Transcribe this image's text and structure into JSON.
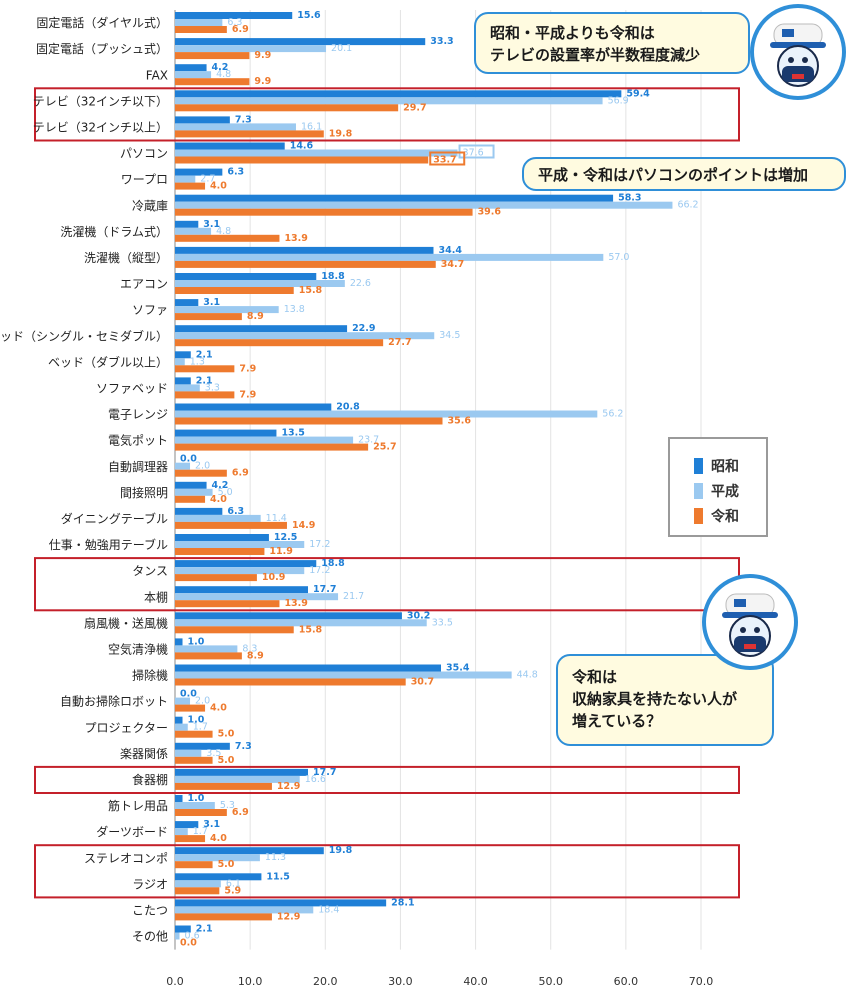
{
  "chart_data": {
    "type": "bar",
    "orientation": "horizontal",
    "categories": [
      "固定電話（ダイヤル式）",
      "固定電話（プッシュ式）",
      "FAX",
      "テレビ（32インチ以下）",
      "テレビ（32インチ以上）",
      "パソコン",
      "ワープロ",
      "冷蔵庫",
      "洗濯機（ドラム式）",
      "洗濯機（縦型）",
      "エアコン",
      "ソファ",
      "ベッド（シングル・セミダブル）",
      "ベッド（ダブル以上）",
      "ソファベッド",
      "電子レンジ",
      "電気ポット",
      "自動調理器",
      "間接照明",
      "ダイニングテーブル",
      "仕事・勉強用テーブル",
      "タンス",
      "本棚",
      "扇風機・送風機",
      "空気清浄機",
      "掃除機",
      "自動お掃除ロボット",
      "プロジェクター",
      "楽器関係",
      "食器棚",
      "筋トレ用品",
      "ダーツボード",
      "ステレオコンポ",
      "ラジオ",
      "こたつ",
      "その他"
    ],
    "series": [
      {
        "name": "昭和",
        "color": "#1f7fd6",
        "values": [
          15.6,
          33.3,
          4.2,
          59.4,
          7.3,
          14.6,
          6.3,
          58.3,
          3.1,
          34.4,
          18.8,
          3.1,
          22.9,
          2.1,
          2.1,
          20.8,
          13.5,
          0.0,
          4.2,
          6.3,
          12.5,
          18.8,
          17.7,
          30.2,
          1.0,
          35.4,
          0.0,
          1.0,
          7.3,
          17.7,
          1.0,
          3.1,
          19.8,
          11.5,
          28.1,
          2.1
        ]
      },
      {
        "name": "平成",
        "color": "#9bc9f0",
        "values": [
          6.3,
          20.1,
          4.8,
          56.9,
          16.1,
          37.6,
          2.7,
          66.2,
          4.8,
          57.0,
          22.6,
          13.8,
          34.5,
          1.3,
          3.3,
          56.2,
          23.7,
          2.0,
          5.0,
          11.4,
          17.2,
          17.2,
          21.7,
          33.5,
          8.3,
          44.8,
          2.0,
          1.7,
          3.5,
          16.6,
          5.3,
          1.7,
          11.3,
          6.1,
          18.4,
          0.6
        ]
      },
      {
        "name": "令和",
        "color": "#ee7a2e",
        "values": [
          6.9,
          9.9,
          9.9,
          29.7,
          19.8,
          33.7,
          4.0,
          39.6,
          13.9,
          34.7,
          15.8,
          8.9,
          27.7,
          7.9,
          7.9,
          35.6,
          25.7,
          6.9,
          4.0,
          14.9,
          11.9,
          10.9,
          13.9,
          15.8,
          8.9,
          30.7,
          4.0,
          5.0,
          5.0,
          12.9,
          6.9,
          4.0,
          5.0,
          5.9,
          12.9,
          0.0
        ]
      }
    ],
    "xlim": [
      0,
      70
    ],
    "xticks": [
      "0.0",
      "10.0",
      "20.0",
      "30.0",
      "40.0",
      "50.0",
      "60.0",
      "70.0"
    ],
    "grid": true,
    "legend_position": "right",
    "highlighted_categories": [
      "テレビ（32インチ以下）",
      "テレビ（32インチ以上）",
      "タンス",
      "本棚",
      "食器棚",
      "ステレオコンポ",
      "ラジオ"
    ],
    "highlighted_values": [
      "37.6",
      "33.7"
    ]
  },
  "annotations": {
    "bubble_top": [
      "昭和・平成よりも令和は",
      "テレビの設置率が半数程度減少"
    ],
    "bubble_pc": "平成・令和はパソコンのポイントは増加",
    "bubble_storage": [
      "令和は",
      "収納家具を持たない人が",
      "増えている？"
    ]
  },
  "legend": {
    "labels": [
      "昭和",
      "平成",
      "令和"
    ]
  },
  "icons": {
    "mascot": "mascot-icon"
  }
}
